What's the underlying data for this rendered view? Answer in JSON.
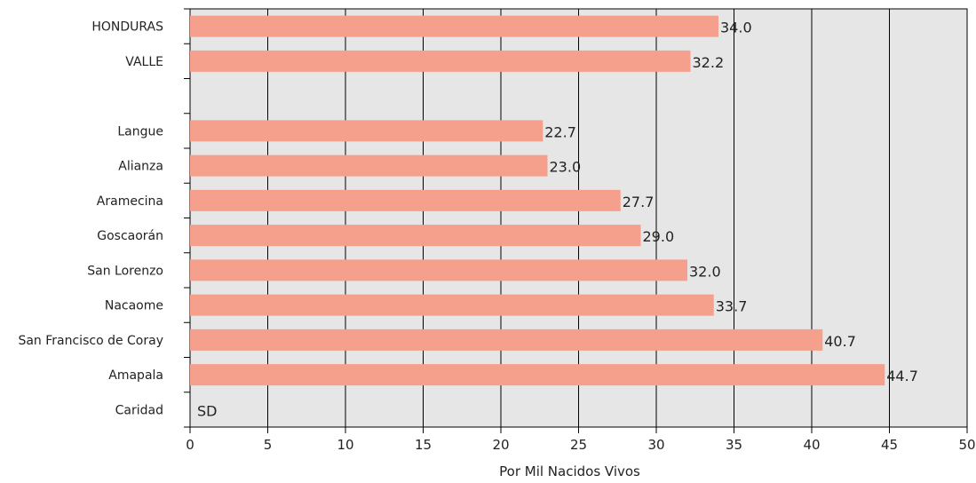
{
  "chart_data": {
    "type": "bar",
    "orientation": "horizontal",
    "categories": [
      "HONDURAS",
      "VALLE",
      "",
      "Langue",
      "Alianza",
      "Aramecina",
      "Goscaorán",
      "San Lorenzo",
      "Nacaome",
      "San Francisco de Coray",
      "Amapala",
      "Caridad"
    ],
    "values": [
      34.0,
      32.2,
      null,
      22.7,
      23.0,
      27.7,
      29.0,
      32.0,
      33.7,
      40.7,
      44.7,
      null
    ],
    "value_labels": [
      "34.0",
      "32.2",
      "",
      "22.7",
      "23.0",
      "27.7",
      "29.0",
      "32.0",
      "33.7",
      "40.7",
      "44.7",
      "SD"
    ],
    "xlabel": "Por Mil Nacidos Vivos",
    "xlim": [
      0,
      50
    ],
    "xticks": [
      "0",
      "5",
      "10",
      "15",
      "20",
      "25",
      "30",
      "35",
      "40",
      "45",
      "50"
    ],
    "grid": "vertical",
    "bar_color": "#f5a08c",
    "plot_background": "#e6e6e6"
  }
}
